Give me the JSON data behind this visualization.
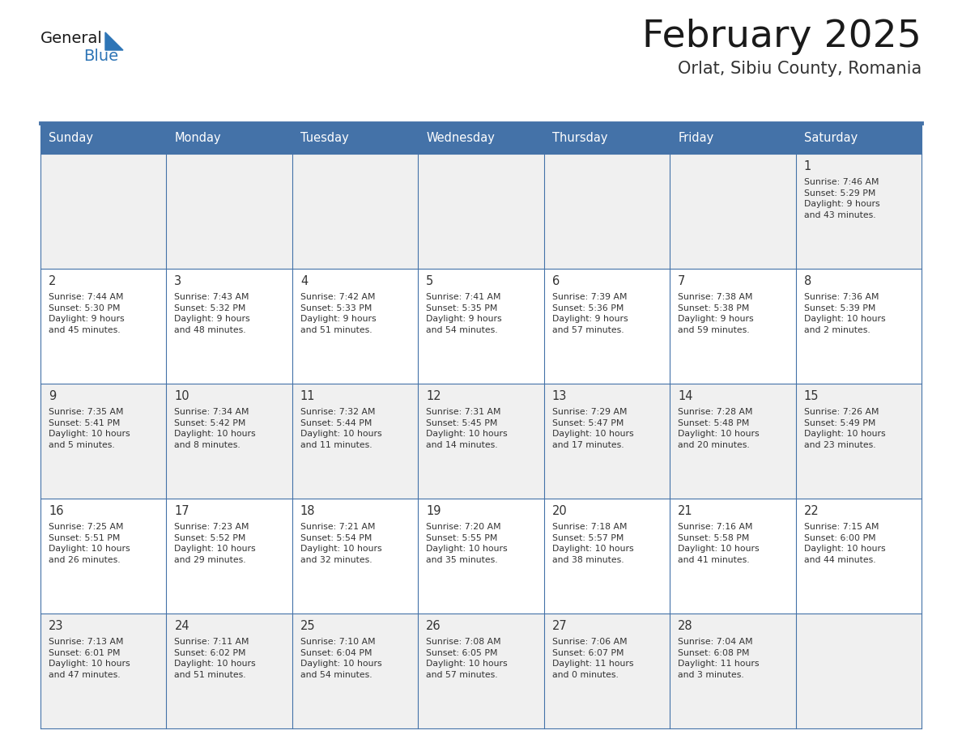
{
  "title": "February 2025",
  "subtitle": "Orlat, Sibiu County, Romania",
  "days_of_week": [
    "Sunday",
    "Monday",
    "Tuesday",
    "Wednesday",
    "Thursday",
    "Friday",
    "Saturday"
  ],
  "header_bg": "#4472A8",
  "header_text_color": "#FFFFFF",
  "cell_bg_light": "#F0F0F0",
  "cell_bg_white": "#FFFFFF",
  "border_color": "#4472A8",
  "day_number_color": "#333333",
  "info_text_color": "#333333",
  "title_color": "#1a1a1a",
  "subtitle_color": "#333333",
  "logo_general_color": "#1a1a1a",
  "logo_blue_color": "#2E75B6",
  "logo_triangle_color": "#2E75B6",
  "calendar_data": [
    [
      {
        "day": "",
        "info": ""
      },
      {
        "day": "",
        "info": ""
      },
      {
        "day": "",
        "info": ""
      },
      {
        "day": "",
        "info": ""
      },
      {
        "day": "",
        "info": ""
      },
      {
        "day": "",
        "info": ""
      },
      {
        "day": "1",
        "info": "Sunrise: 7:46 AM\nSunset: 5:29 PM\nDaylight: 9 hours\nand 43 minutes."
      }
    ],
    [
      {
        "day": "2",
        "info": "Sunrise: 7:44 AM\nSunset: 5:30 PM\nDaylight: 9 hours\nand 45 minutes."
      },
      {
        "day": "3",
        "info": "Sunrise: 7:43 AM\nSunset: 5:32 PM\nDaylight: 9 hours\nand 48 minutes."
      },
      {
        "day": "4",
        "info": "Sunrise: 7:42 AM\nSunset: 5:33 PM\nDaylight: 9 hours\nand 51 minutes."
      },
      {
        "day": "5",
        "info": "Sunrise: 7:41 AM\nSunset: 5:35 PM\nDaylight: 9 hours\nand 54 minutes."
      },
      {
        "day": "6",
        "info": "Sunrise: 7:39 AM\nSunset: 5:36 PM\nDaylight: 9 hours\nand 57 minutes."
      },
      {
        "day": "7",
        "info": "Sunrise: 7:38 AM\nSunset: 5:38 PM\nDaylight: 9 hours\nand 59 minutes."
      },
      {
        "day": "8",
        "info": "Sunrise: 7:36 AM\nSunset: 5:39 PM\nDaylight: 10 hours\nand 2 minutes."
      }
    ],
    [
      {
        "day": "9",
        "info": "Sunrise: 7:35 AM\nSunset: 5:41 PM\nDaylight: 10 hours\nand 5 minutes."
      },
      {
        "day": "10",
        "info": "Sunrise: 7:34 AM\nSunset: 5:42 PM\nDaylight: 10 hours\nand 8 minutes."
      },
      {
        "day": "11",
        "info": "Sunrise: 7:32 AM\nSunset: 5:44 PM\nDaylight: 10 hours\nand 11 minutes."
      },
      {
        "day": "12",
        "info": "Sunrise: 7:31 AM\nSunset: 5:45 PM\nDaylight: 10 hours\nand 14 minutes."
      },
      {
        "day": "13",
        "info": "Sunrise: 7:29 AM\nSunset: 5:47 PM\nDaylight: 10 hours\nand 17 minutes."
      },
      {
        "day": "14",
        "info": "Sunrise: 7:28 AM\nSunset: 5:48 PM\nDaylight: 10 hours\nand 20 minutes."
      },
      {
        "day": "15",
        "info": "Sunrise: 7:26 AM\nSunset: 5:49 PM\nDaylight: 10 hours\nand 23 minutes."
      }
    ],
    [
      {
        "day": "16",
        "info": "Sunrise: 7:25 AM\nSunset: 5:51 PM\nDaylight: 10 hours\nand 26 minutes."
      },
      {
        "day": "17",
        "info": "Sunrise: 7:23 AM\nSunset: 5:52 PM\nDaylight: 10 hours\nand 29 minutes."
      },
      {
        "day": "18",
        "info": "Sunrise: 7:21 AM\nSunset: 5:54 PM\nDaylight: 10 hours\nand 32 minutes."
      },
      {
        "day": "19",
        "info": "Sunrise: 7:20 AM\nSunset: 5:55 PM\nDaylight: 10 hours\nand 35 minutes."
      },
      {
        "day": "20",
        "info": "Sunrise: 7:18 AM\nSunset: 5:57 PM\nDaylight: 10 hours\nand 38 minutes."
      },
      {
        "day": "21",
        "info": "Sunrise: 7:16 AM\nSunset: 5:58 PM\nDaylight: 10 hours\nand 41 minutes."
      },
      {
        "day": "22",
        "info": "Sunrise: 7:15 AM\nSunset: 6:00 PM\nDaylight: 10 hours\nand 44 minutes."
      }
    ],
    [
      {
        "day": "23",
        "info": "Sunrise: 7:13 AM\nSunset: 6:01 PM\nDaylight: 10 hours\nand 47 minutes."
      },
      {
        "day": "24",
        "info": "Sunrise: 7:11 AM\nSunset: 6:02 PM\nDaylight: 10 hours\nand 51 minutes."
      },
      {
        "day": "25",
        "info": "Sunrise: 7:10 AM\nSunset: 6:04 PM\nDaylight: 10 hours\nand 54 minutes."
      },
      {
        "day": "26",
        "info": "Sunrise: 7:08 AM\nSunset: 6:05 PM\nDaylight: 10 hours\nand 57 minutes."
      },
      {
        "day": "27",
        "info": "Sunrise: 7:06 AM\nSunset: 6:07 PM\nDaylight: 11 hours\nand 0 minutes."
      },
      {
        "day": "28",
        "info": "Sunrise: 7:04 AM\nSunset: 6:08 PM\nDaylight: 11 hours\nand 3 minutes."
      },
      {
        "day": "",
        "info": ""
      }
    ]
  ]
}
